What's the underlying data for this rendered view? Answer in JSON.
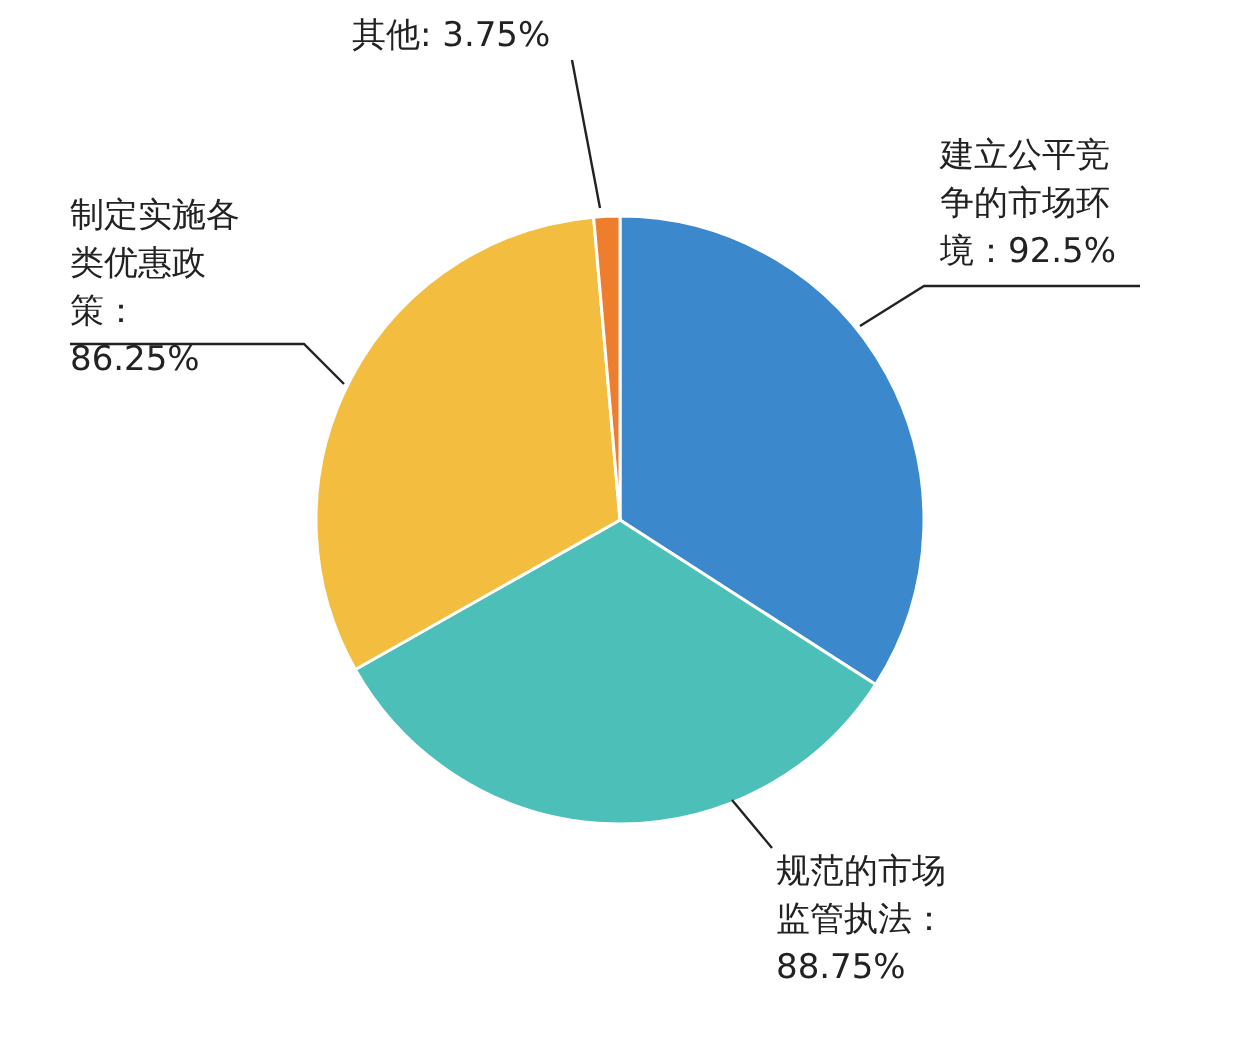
{
  "chart_data": {
    "type": "pie",
    "categories": [
      "建立公平竞争的市场环境：92.5%",
      "规范的市场监管执法：88.75%",
      "制定实施各类优惠政策：86.25%",
      "其他: 3.75%"
    ],
    "values": [
      92.5,
      88.75,
      86.25,
      3.75
    ],
    "colors": [
      "#3b88cd",
      "#4dbfb9",
      "#f3be40",
      "#ee7d2e"
    ]
  }
}
